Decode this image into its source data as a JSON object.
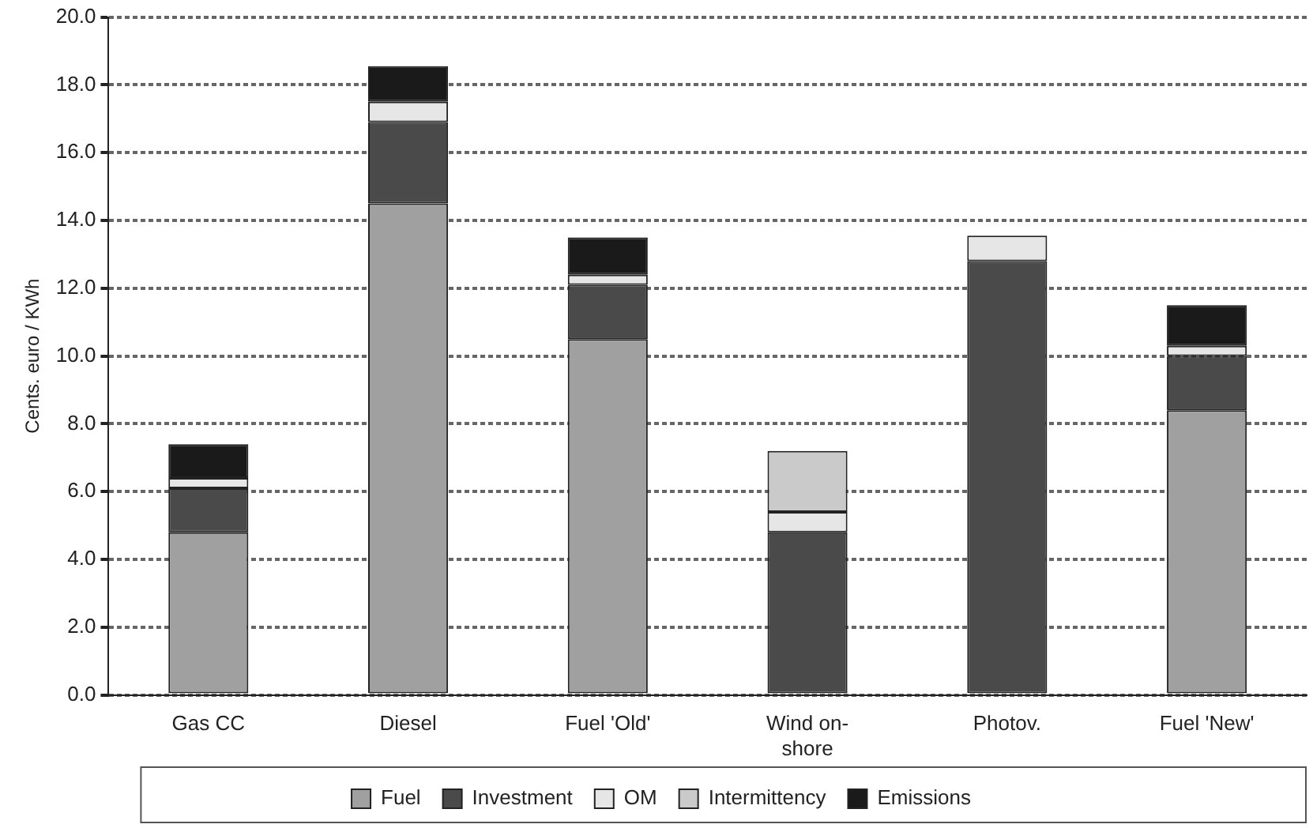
{
  "chart_data": {
    "type": "bar",
    "stacked": true,
    "ylabel": "Cents. euro / KWh",
    "categories": [
      "Gas CC",
      "Diesel",
      "Fuel 'Old'",
      "Wind on-shore",
      "Photov.",
      "Fuel 'New'"
    ],
    "series": [
      {
        "name": "Fuel",
        "color": "#a0a0a0",
        "values": [
          4.8,
          14.5,
          10.5,
          null,
          null,
          8.4
        ]
      },
      {
        "name": "Investment",
        "color": "#4a4a4a",
        "values": [
          1.3,
          2.4,
          1.6,
          4.8,
          12.8,
          1.6
        ]
      },
      {
        "name": "OM",
        "color": "#e6e6e6",
        "values": [
          0.3,
          0.6,
          0.3,
          0.6,
          0.75,
          0.3
        ]
      },
      {
        "name": "Intermittency",
        "color": "#cacaca",
        "values": [
          null,
          null,
          null,
          1.8,
          null,
          null
        ]
      },
      {
        "name": "Emissions",
        "color": "#1a1a1a",
        "values": [
          1.0,
          1.05,
          1.1,
          null,
          null,
          1.2
        ]
      }
    ],
    "ylim": [
      0,
      20
    ],
    "yticks": [
      {
        "value": 0,
        "label": "0.0"
      },
      {
        "value": 2,
        "label": "2.0"
      },
      {
        "value": 4,
        "label": "4.0"
      },
      {
        "value": 6,
        "label": "6.0"
      },
      {
        "value": 8,
        "label": "8.0"
      },
      {
        "value": 10,
        "label": "10.0"
      },
      {
        "value": 12,
        "label": "12.0"
      },
      {
        "value": 14,
        "label": "14.0"
      },
      {
        "value": 16,
        "label": "16.0"
      },
      {
        "value": 18,
        "label": "18.0"
      },
      {
        "value": 20,
        "label": "20.0"
      }
    ],
    "grid": "y",
    "legend": "bottom"
  }
}
